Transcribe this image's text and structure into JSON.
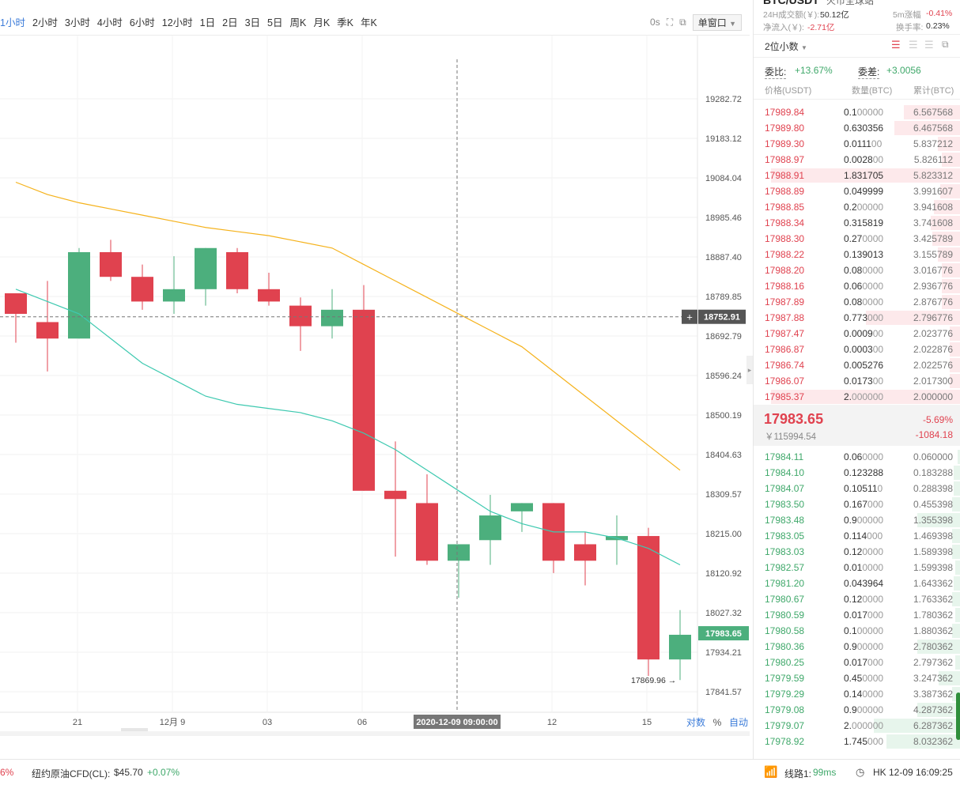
{
  "toolbar": {
    "intervals": [
      "1小时",
      "2小时",
      "3小时",
      "4小时",
      "6小时",
      "12小时",
      "1日",
      "2日",
      "3日",
      "5日",
      "周K",
      "月K",
      "季K",
      "年K"
    ],
    "active_interval": "1小时",
    "seconds_label": "0s",
    "single_window_label": "单窗口"
  },
  "chart_data": {
    "type": "candlestick",
    "price_axis": [
      "19282.72",
      "19183.12",
      "19084.04",
      "18985.46",
      "18887.40",
      "18789.85",
      "18692.79",
      "18596.24",
      "18500.19",
      "18404.63",
      "18309.57",
      "18215.00",
      "18120.92",
      "18027.32",
      "17934.21",
      "17841.57"
    ],
    "time_axis": [
      "21",
      "12月 9",
      "03",
      "06",
      "12",
      "15"
    ],
    "crosshair_price": "18752.91",
    "crosshair_time": "2020-12-09 09:00:00",
    "last_price_tag": "17983.65",
    "low_marker": "17869.96",
    "scale_buttons": [
      "对数",
      "%",
      "自动"
    ],
    "candles": [
      {
        "o": 18810,
        "h": 18810,
        "l": 18690,
        "c": 18760
      },
      {
        "o": 18740,
        "h": 18840,
        "l": 18620,
        "c": 18700
      },
      {
        "o": 18700,
        "h": 18920,
        "l": 18700,
        "c": 18910
      },
      {
        "o": 18910,
        "h": 18940,
        "l": 18840,
        "c": 18850
      },
      {
        "o": 18850,
        "h": 18880,
        "l": 18770,
        "c": 18790
      },
      {
        "o": 18790,
        "h": 18900,
        "l": 18760,
        "c": 18820
      },
      {
        "o": 18820,
        "h": 18920,
        "l": 18780,
        "c": 18920
      },
      {
        "o": 18910,
        "h": 18920,
        "l": 18810,
        "c": 18820
      },
      {
        "o": 18820,
        "h": 18860,
        "l": 18780,
        "c": 18790
      },
      {
        "o": 18780,
        "h": 18800,
        "l": 18670,
        "c": 18730
      },
      {
        "o": 18730,
        "h": 18820,
        "l": 18700,
        "c": 18770
      },
      {
        "o": 18770,
        "h": 18830,
        "l": 18330,
        "c": 18330
      },
      {
        "o": 18330,
        "h": 18450,
        "l": 18170,
        "c": 18310
      },
      {
        "o": 18300,
        "h": 18370,
        "l": 18150,
        "c": 18160
      },
      {
        "o": 18160,
        "h": 18200,
        "l": 18070,
        "c": 18200
      },
      {
        "o": 18210,
        "h": 18320,
        "l": 18150,
        "c": 18270
      },
      {
        "o": 18280,
        "h": 18300,
        "l": 18230,
        "c": 18300
      },
      {
        "o": 18300,
        "h": 18300,
        "l": 18130,
        "c": 18160
      },
      {
        "o": 18200,
        "h": 18230,
        "l": 18100,
        "c": 18160
      },
      {
        "o": 18210,
        "h": 18270,
        "l": 18150,
        "c": 18220
      },
      {
        "o": 18220,
        "h": 18240,
        "l": 17880,
        "c": 17920
      },
      {
        "o": 17920,
        "h": 18040,
        "l": 17870,
        "c": 17980
      }
    ],
    "ma_short": [
      18820,
      18790,
      18760,
      18700,
      18640,
      18600,
      18560,
      18540,
      18530,
      18520,
      18500,
      18470,
      18430,
      18380,
      18330,
      18280,
      18250,
      18230,
      18230,
      18215,
      18190,
      18150
    ],
    "ma_long": [
      19080,
      19050,
      19030,
      19015,
      19000,
      18985,
      18970,
      18960,
      18950,
      18935,
      18920,
      18880,
      18840,
      18800,
      18760,
      18720,
      18680,
      18620,
      18560,
      18500,
      18440,
      18380
    ]
  },
  "panel": {
    "top_title": "BTC/USDT",
    "top_subtitle": "火币全球站",
    "vol_24h_label": "24H成交额(￥):",
    "vol_24h_value": "50.12亿",
    "change_5m_label": "5m涨幅",
    "change_5m_value": "-0.41%",
    "net_inflow_label": "净流入(￥):",
    "net_inflow_value": "-2.71亿",
    "turnover_label": "换手率:",
    "turnover_value": "0.23%",
    "decimals_label": "2位小数",
    "ratio_label": "委比:",
    "ratio_value": "+13.67%",
    "diff_label": "委差:",
    "diff_value": "+3.0056",
    "col_price": "价格(USDT)",
    "col_qty": "数量(BTC)",
    "col_cum": "累计(BTC)",
    "last_price": "17983.65",
    "last_change_pct": "-5.69%",
    "last_cny": "￥115994.54",
    "last_change_abs": "-1084.18",
    "asks": [
      {
        "p": "17989.84",
        "q1": "0.1",
        "q2": "00000",
        "c": "6.567568",
        "w": 0.3
      },
      {
        "p": "17989.80",
        "q1": "0.630356",
        "q2": "",
        "c": "6.467568",
        "w": 0.35
      },
      {
        "p": "17989.30",
        "q1": "0.0111",
        "q2": "00",
        "c": "5.837212",
        "w": 0.12
      },
      {
        "p": "17988.97",
        "q1": "0.0028",
        "q2": "00",
        "c": "5.826112",
        "w": 0.1
      },
      {
        "p": "17988.91",
        "q1": "1.831705",
        "q2": "",
        "c": "5.823312",
        "w": 1.0
      },
      {
        "p": "17988.89",
        "q1": "0.049999",
        "q2": "",
        "c": "3.991607",
        "w": 0.11
      },
      {
        "p": "17988.85",
        "q1": "0.2",
        "q2": "00000",
        "c": "3.941608",
        "w": 0.14
      },
      {
        "p": "17988.34",
        "q1": "0.315819",
        "q2": "",
        "c": "3.741608",
        "w": 0.16
      },
      {
        "p": "17988.30",
        "q1": "0.27",
        "q2": "0000",
        "c": "3.425789",
        "w": 0.15
      },
      {
        "p": "17988.22",
        "q1": "0.139013",
        "q2": "",
        "c": "3.155789",
        "w": 0.12
      },
      {
        "p": "17988.20",
        "q1": "0.08",
        "q2": "0000",
        "c": "3.016776",
        "w": 0.1
      },
      {
        "p": "17988.16",
        "q1": "0.06",
        "q2": "0000",
        "c": "2.936776",
        "w": 0.1
      },
      {
        "p": "17987.89",
        "q1": "0.08",
        "q2": "0000",
        "c": "2.876776",
        "w": 0.1
      },
      {
        "p": "17987.88",
        "q1": "0.773",
        "q2": "000",
        "c": "2.796776",
        "w": 0.5
      },
      {
        "p": "17987.47",
        "q1": "0.0009",
        "q2": "00",
        "c": "2.023776",
        "w": 0.06
      },
      {
        "p": "17986.87",
        "q1": "0.0003",
        "q2": "00",
        "c": "2.022876",
        "w": 0.06
      },
      {
        "p": "17986.74",
        "q1": "0.005276",
        "q2": "",
        "c": "2.022576",
        "w": 0.06
      },
      {
        "p": "17986.07",
        "q1": "0.0173",
        "q2": "00",
        "c": "2.017300",
        "w": 0.06
      },
      {
        "p": "17985.37",
        "q1": "2.",
        "q2": "000000",
        "c": "2.000000",
        "w": 1.0
      }
    ],
    "bids": [
      {
        "p": "17984.11",
        "q1": "0.06",
        "q2": "0000",
        "c": "0.060000",
        "w": 0.04
      },
      {
        "p": "17984.10",
        "q1": "0.123288",
        "q2": "",
        "c": "0.183288",
        "w": 0.08
      },
      {
        "p": "17984.07",
        "q1": "0.10511",
        "q2": "0",
        "c": "0.288398",
        "w": 0.08
      },
      {
        "p": "17983.50",
        "q1": "0.167",
        "q2": "000",
        "c": "0.455398",
        "w": 0.1
      },
      {
        "p": "17983.48",
        "q1": "0.9",
        "q2": "00000",
        "c": "1.355398",
        "w": 0.5
      },
      {
        "p": "17983.05",
        "q1": "0.114",
        "q2": "000",
        "c": "1.469398",
        "w": 0.1
      },
      {
        "p": "17983.03",
        "q1": "0.12",
        "q2": "0000",
        "c": "1.589398",
        "w": 0.1
      },
      {
        "p": "17982.57",
        "q1": "0.01",
        "q2": "0000",
        "c": "1.599398",
        "w": 0.06
      },
      {
        "p": "17981.20",
        "q1": "0.043964",
        "q2": "",
        "c": "1.643362",
        "w": 0.08
      },
      {
        "p": "17980.67",
        "q1": "0.12",
        "q2": "0000",
        "c": "1.763362",
        "w": 0.1
      },
      {
        "p": "17980.59",
        "q1": "0.017",
        "q2": "000",
        "c": "1.780362",
        "w": 0.06
      },
      {
        "p": "17980.58",
        "q1": "0.1",
        "q2": "00000",
        "c": "1.880362",
        "w": 0.1
      },
      {
        "p": "17980.36",
        "q1": "0.9",
        "q2": "00000",
        "c": "2.780362",
        "w": 0.5
      },
      {
        "p": "17980.25",
        "q1": "0.017",
        "q2": "000",
        "c": "2.797362",
        "w": 0.06
      },
      {
        "p": "17979.59",
        "q1": "0.45",
        "q2": "0000",
        "c": "3.247362",
        "w": 0.25
      },
      {
        "p": "17979.29",
        "q1": "0.14",
        "q2": "0000",
        "c": "3.387362",
        "w": 0.1
      },
      {
        "p": "17979.08",
        "q1": "0.9",
        "q2": "00000",
        "c": "4.287362",
        "w": 0.5
      },
      {
        "p": "17979.07",
        "q1": "2.",
        "q2": "000000",
        "c": "6.287362",
        "w": 1.0
      },
      {
        "p": "17978.92",
        "q1": "1.745",
        "q2": "000",
        "c": "8.032362",
        "w": 0.85
      }
    ]
  },
  "status": {
    "left_fragment": "6%",
    "ticker_name": "纽约原油CFD(CL):",
    "ticker_price": "$45.70",
    "ticker_change": "+0.07%",
    "line_label": "线路1:",
    "line_ping": "99ms",
    "clock": "HK 12-09 16:09:25"
  },
  "colors": {
    "up": "#4caf7d",
    "down": "#e0424f",
    "ma_short": "#3ec9b0",
    "ma_long": "#f5b21b",
    "accent": "#3c7cd9"
  }
}
